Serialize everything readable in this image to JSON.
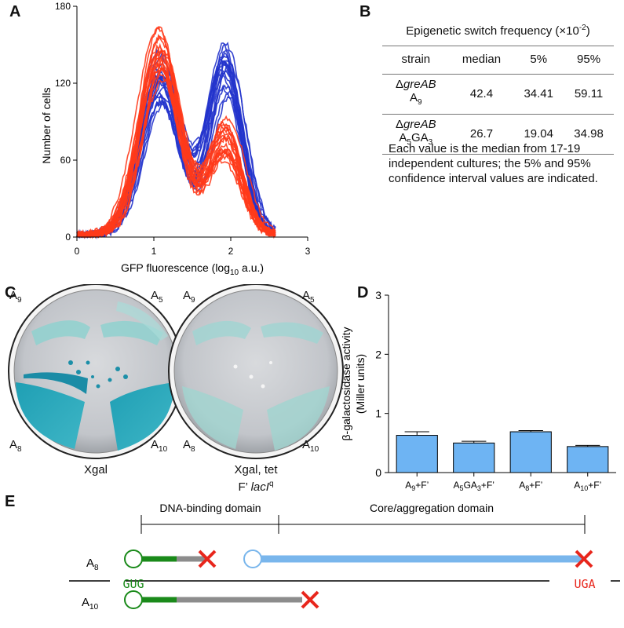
{
  "panels": {
    "a": "A",
    "b": "B",
    "c": "C",
    "d": "D",
    "e": "E"
  },
  "panel_b": {
    "title": "Epigenetic switch frequency (×10",
    "title_exp": "-2",
    "title_close": ")",
    "headers": [
      "strain",
      "median",
      "5%",
      "95%"
    ],
    "rows": [
      {
        "strain_line1": "greAB",
        "strain_line2": "A",
        "strain_sub": "9",
        "median": "42.4",
        "p5": "34.41",
        "p95": "59.11"
      },
      {
        "strain_line1": "greAB",
        "strain_line2": "A",
        "strain_sub": "5",
        "strain_line2b": "GA",
        "strain_sub2": "3",
        "median": "26.7",
        "p5": "19.04",
        "p95": "34.98"
      }
    ],
    "delta": "Δ",
    "note": "Each value is the median from 17-19 independent cultures; the 5% and 95% confidence interval values are indicated."
  },
  "panel_c": {
    "plate1_labels": {
      "tl": "A",
      "tl_sub": "9",
      "tr": "A",
      "tr_sub": "5",
      "bl": "A",
      "bl_sub": "8",
      "br": "A",
      "br_sub": "10"
    },
    "plate2_labels": {
      "tl": "A",
      "tl_sub": "9",
      "tr": "A",
      "tr_sub": "5",
      "bl": "A",
      "bl_sub": "8",
      "br": "A",
      "br_sub": "10"
    },
    "plate1_caption": "Xgal",
    "plate2_caption_line1": "Xgal, tet",
    "plate2_caption_line2": "F’ ",
    "plate2_caption_italic": "lacI",
    "plate2_caption_sup": "q",
    "colors": {
      "blue": "#2aa6b8",
      "plate": "#c9ccd0"
    }
  },
  "chart_data": [
    {
      "type": "line",
      "title": "",
      "xlabel": "GFP fluorescence (log",
      "xlabel_sub": "10",
      "xlabel_end": " a.u.)",
      "ylabel": "Number of cells",
      "xlim": [
        0,
        3
      ],
      "ylim": [
        0,
        180
      ],
      "xticks": [
        "0",
        "1",
        "2",
        "3"
      ],
      "yticks": [
        "0",
        "60",
        "120",
        "180"
      ],
      "series": [
        {
          "color": "#2233cc",
          "count": 18
        },
        {
          "color": "#ff3a1a",
          "count": 19
        }
      ]
    },
    {
      "type": "bar",
      "title": "",
      "ylabel": "β-galactosidase activity",
      "ylabel2": "(Miller units)",
      "ylim": [
        0,
        3
      ],
      "yticks": [
        "0",
        "1",
        "2",
        "3"
      ],
      "categories": [
        "A9+F’",
        "A5GA3+F’",
        "A8+F’",
        "A10+F’"
      ],
      "values": [
        0.63,
        0.5,
        0.69,
        0.44
      ],
      "errors": [
        0.06,
        0.03,
        0.02,
        0.02
      ],
      "color": "#6eb4f3"
    }
  ],
  "panel_e": {
    "domain1": "DNA-binding domain",
    "domain2": "Core/aggregation domain",
    "a8": "A",
    "a8_sub": "8",
    "a10": "A",
    "a10_sub": "10",
    "start_codon": "GUG",
    "stop_codon": "UGA",
    "colors": {
      "green": "#1a8a1a",
      "gray": "#8c8c8c",
      "blue": "#79b6ec",
      "red": "#e8261c"
    }
  }
}
